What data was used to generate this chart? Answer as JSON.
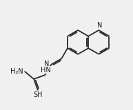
{
  "background": "#f0f0f0",
  "bond_color": "#2a2a2a",
  "text_color": "#1a1a1a",
  "bond_lw": 1.3,
  "fig_width": 1.93,
  "fig_height": 1.6,
  "dpi": 100,
  "xlim": [
    0,
    9.5
  ],
  "ylim": [
    0,
    8
  ]
}
